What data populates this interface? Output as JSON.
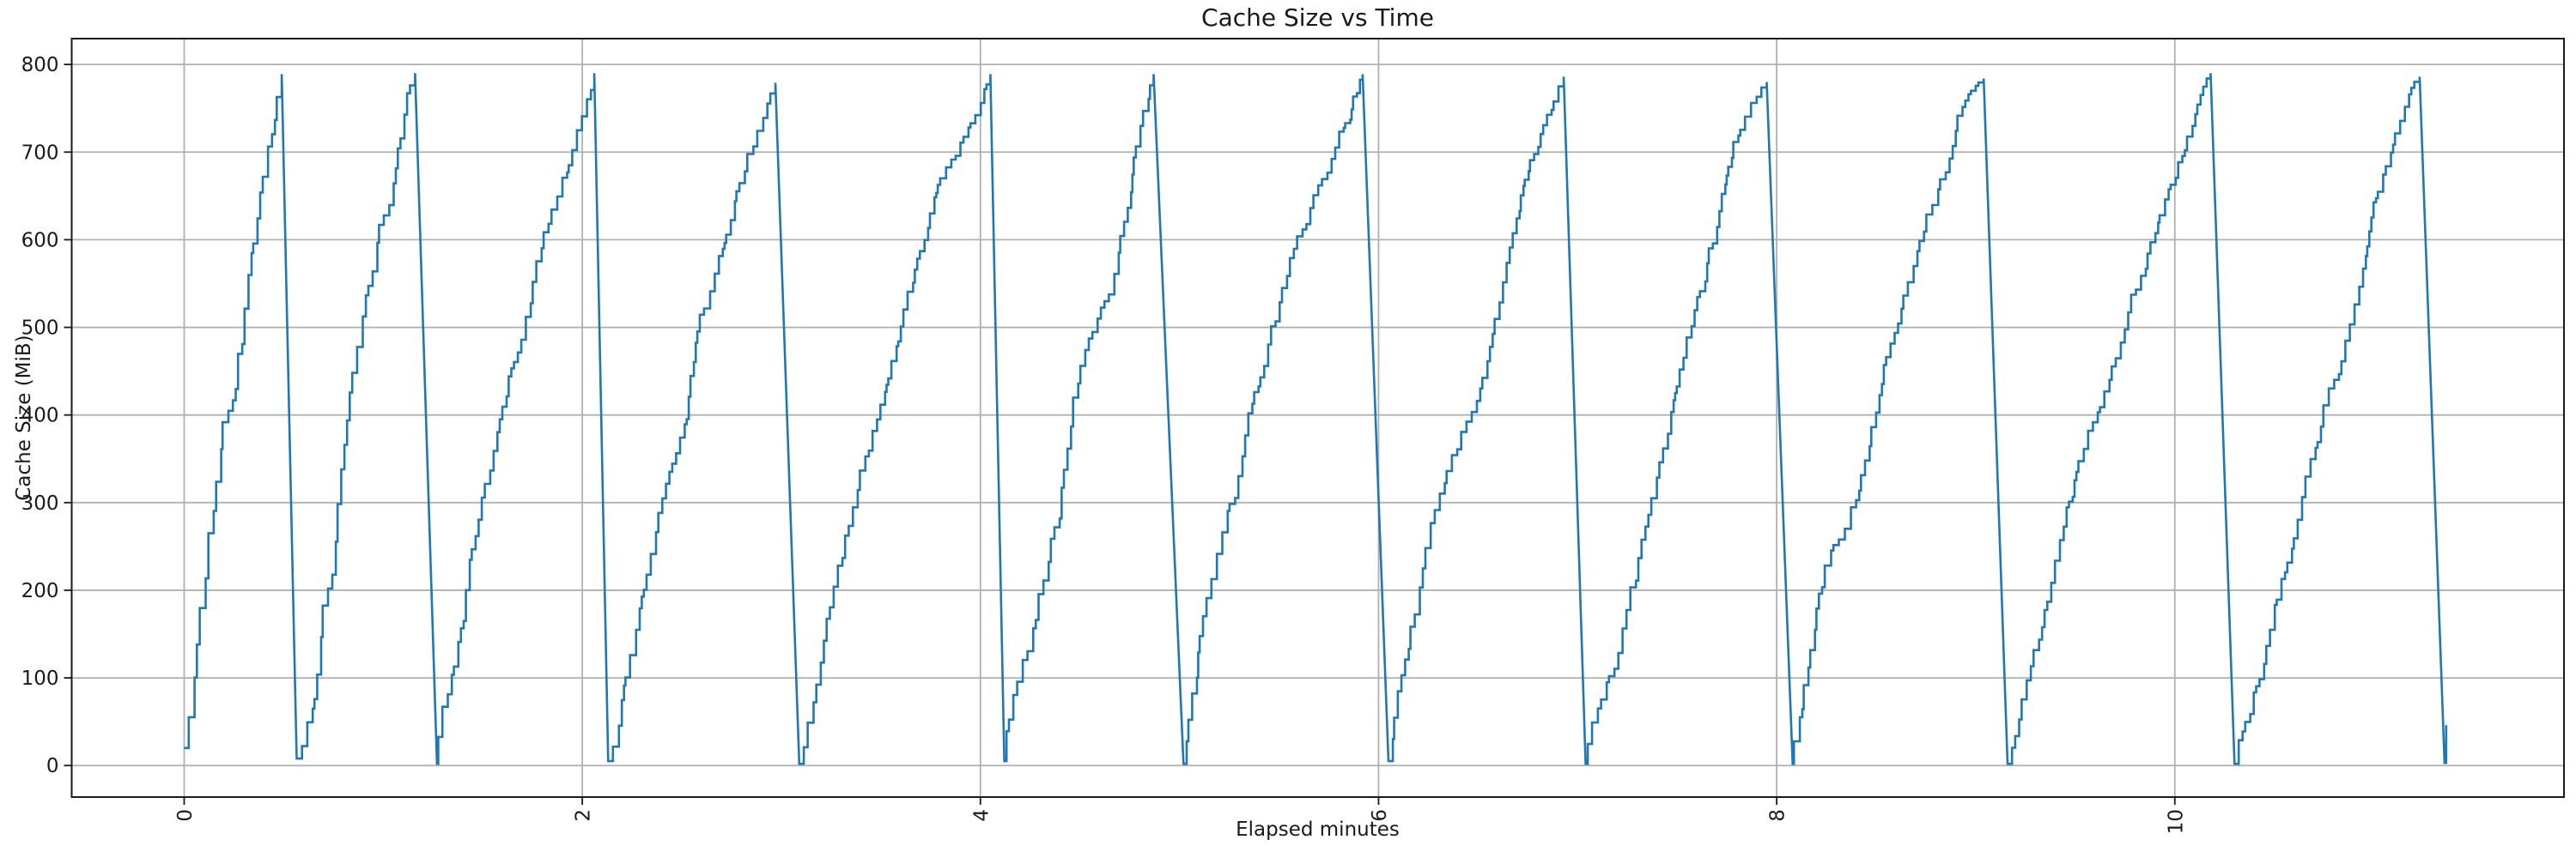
{
  "chart_data": {
    "type": "line",
    "title": "Cache Size vs Time",
    "xlabel": "Elapsed minutes",
    "ylabel": "Cache Size (MiB)",
    "x_ticks": [
      0,
      2,
      4,
      6,
      8,
      10
    ],
    "y_ticks": [
      0,
      100,
      200,
      300,
      400,
      500,
      600,
      700,
      800
    ],
    "xlim": [
      -0.565,
      11.955
    ],
    "ylim": [
      -36,
      829.5
    ],
    "grid": true,
    "legend": "none",
    "line_color": "#1f77b4",
    "grid_color": "#b0b0b0",
    "axis_color": "#1a1a1a",
    "x_tick_rotation_deg": 90,
    "pattern": "staircase fill then sharp eviction drop (sawtooth)",
    "step_interval_minutes": 0.018,
    "step_height_typical_mib": 14,
    "teeth": [
      {
        "t_start": 0.0,
        "v_start": 20,
        "t_peak": 0.49,
        "v_peak": 789,
        "t_drop_end": 0.565,
        "v_drop_end": 8
      },
      {
        "t_start": 0.565,
        "v_start": 8,
        "t_peak": 1.16,
        "v_peak": 790,
        "t_drop_end": 1.27,
        "v_drop_end": 2
      },
      {
        "t_start": 1.27,
        "v_start": 2,
        "t_peak": 2.06,
        "v_peak": 790,
        "t_drop_end": 2.13,
        "v_drop_end": 5
      },
      {
        "t_start": 2.13,
        "v_start": 5,
        "t_peak": 2.97,
        "v_peak": 779,
        "t_drop_end": 3.09,
        "v_drop_end": 2
      },
      {
        "t_start": 3.09,
        "v_start": 2,
        "t_peak": 4.05,
        "v_peak": 789,
        "t_drop_end": 4.12,
        "v_drop_end": 5
      },
      {
        "t_start": 4.12,
        "v_start": 5,
        "t_peak": 4.87,
        "v_peak": 789,
        "t_drop_end": 5.02,
        "v_drop_end": 2
      },
      {
        "t_start": 5.02,
        "v_start": 2,
        "t_peak": 5.92,
        "v_peak": 789,
        "t_drop_end": 6.05,
        "v_drop_end": 5
      },
      {
        "t_start": 6.05,
        "v_start": 5,
        "t_peak": 6.93,
        "v_peak": 786,
        "t_drop_end": 7.04,
        "v_drop_end": 2
      },
      {
        "t_start": 7.04,
        "v_start": 2,
        "t_peak": 7.95,
        "v_peak": 780,
        "t_drop_end": 8.08,
        "v_drop_end": 2
      },
      {
        "t_start": 8.08,
        "v_start": 2,
        "t_peak": 9.04,
        "v_peak": 784,
        "t_drop_end": 9.16,
        "v_drop_end": 2
      },
      {
        "t_start": 9.16,
        "v_start": 2,
        "t_peak": 10.18,
        "v_peak": 790,
        "t_drop_end": 10.3,
        "v_drop_end": 2
      },
      {
        "t_start": 10.3,
        "v_start": 2,
        "t_peak": 11.23,
        "v_peak": 786,
        "t_drop_end": 11.355,
        "v_drop_end": 3
      }
    ],
    "tail_points": [
      [
        11.355,
        3
      ],
      [
        11.363,
        3
      ],
      [
        11.363,
        46
      ]
    ]
  }
}
